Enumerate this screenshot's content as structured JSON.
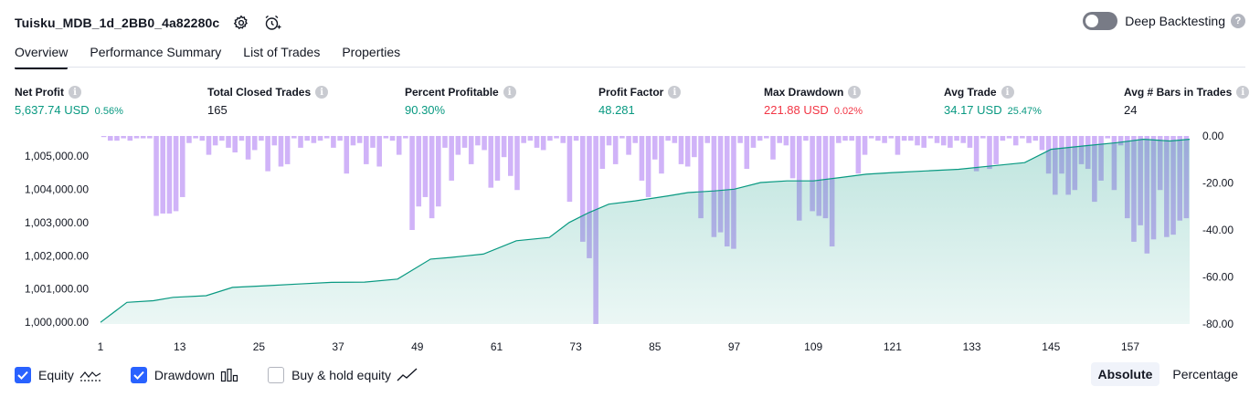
{
  "header": {
    "title": "Tuisku_MDB_1d_2BB0_4a82280c",
    "settings_icon": "gear-icon",
    "alert_icon": "alarm-add-icon",
    "deep_backtesting_label": "Deep Backtesting",
    "deep_backtesting_enabled": false
  },
  "tabs": [
    {
      "label": "Overview",
      "active": true
    },
    {
      "label": "Performance Summary",
      "active": false
    },
    {
      "label": "List of Trades",
      "active": false
    },
    {
      "label": "Properties",
      "active": false
    }
  ],
  "metrics": [
    {
      "label": "Net Profit",
      "value": "5,637.74 USD",
      "sub": "0.56%",
      "color": "#089981"
    },
    {
      "label": "Total Closed Trades",
      "value": "165",
      "sub": "",
      "color": "#131722"
    },
    {
      "label": "Percent Profitable",
      "value": "90.30%",
      "sub": "",
      "color": "#089981"
    },
    {
      "label": "Profit Factor",
      "value": "48.281",
      "sub": "",
      "color": "#089981"
    },
    {
      "label": "Max Drawdown",
      "value": "221.88 USD",
      "sub": "0.02%",
      "color": "#f23645"
    },
    {
      "label": "Avg Trade",
      "value": "34.17 USD",
      "sub": "25.47%",
      "color": "#089981"
    },
    {
      "label": "Avg # Bars in Trades",
      "value": "24",
      "sub": "",
      "color": "#131722"
    }
  ],
  "chart_data": {
    "type": "area",
    "x_ticks": [
      "1",
      "13",
      "25",
      "37",
      "49",
      "61",
      "73",
      "85",
      "97",
      "109",
      "121",
      "133",
      "145",
      "157"
    ],
    "x_range": [
      1,
      166
    ],
    "left_axis": {
      "ticks": [
        "1,000,000.00",
        "1,001,000.00",
        "1,002,000.00",
        "1,003,000.00",
        "1,004,000.00",
        "1,005,000.00"
      ],
      "range": [
        999950,
        1005600
      ]
    },
    "right_axis": {
      "ticks": [
        "0.00",
        "-20.00",
        "-40.00",
        "-60.00",
        "-80.00"
      ],
      "range": [
        -80,
        0
      ]
    },
    "equity": [
      [
        1,
        1000000
      ],
      [
        5,
        1000600
      ],
      [
        9,
        1000650
      ],
      [
        12,
        1000750
      ],
      [
        17,
        1000800
      ],
      [
        21,
        1001050
      ],
      [
        26,
        1001100
      ],
      [
        31,
        1001150
      ],
      [
        36,
        1001200
      ],
      [
        41,
        1001210
      ],
      [
        46,
        1001300
      ],
      [
        51,
        1001900
      ],
      [
        54,
        1001950
      ],
      [
        59,
        1002050
      ],
      [
        64,
        1002450
      ],
      [
        69,
        1002550
      ],
      [
        72,
        1003000
      ],
      [
        75,
        1003300
      ],
      [
        78,
        1003550
      ],
      [
        82,
        1003650
      ],
      [
        87,
        1003800
      ],
      [
        90,
        1003900
      ],
      [
        94,
        1003950
      ],
      [
        97,
        1004000
      ],
      [
        101,
        1004200
      ],
      [
        105,
        1004250
      ],
      [
        109,
        1004250
      ],
      [
        113,
        1004350
      ],
      [
        117,
        1004450
      ],
      [
        121,
        1004500
      ],
      [
        126,
        1004550
      ],
      [
        131,
        1004600
      ],
      [
        136,
        1004700
      ],
      [
        141,
        1004800
      ],
      [
        145,
        1005200
      ],
      [
        150,
        1005300
      ],
      [
        155,
        1005400
      ],
      [
        159,
        1005500
      ],
      [
        163,
        1005450
      ],
      [
        166,
        1005500
      ]
    ],
    "drawdown": [
      0,
      -2,
      -2,
      -1,
      -2,
      -1,
      -1,
      -1,
      -34,
      -33,
      -33,
      -32,
      -26,
      -3,
      -1,
      -2,
      -8,
      -4,
      -2,
      -5,
      -7,
      -2,
      -10,
      -6,
      -2,
      -15,
      -4,
      -13,
      -12,
      -1,
      -5,
      -2,
      -3,
      -2,
      -1,
      -5,
      -2,
      -16,
      -4,
      -3,
      -12,
      -5,
      -13,
      -1,
      -2,
      -8,
      -1,
      -40,
      -30,
      -26,
      -35,
      -30,
      -5,
      -19,
      -8,
      -5,
      -12,
      -4,
      -6,
      -22,
      -19,
      -9,
      -17,
      -23,
      -3,
      -2,
      -5,
      -6,
      -2,
      -1,
      -3,
      -28,
      -2,
      -45,
      -52,
      -80,
      -14,
      -4,
      -12,
      -1,
      -8,
      -3,
      -19,
      -26,
      -10,
      -16,
      -2,
      -3,
      -12,
      -13,
      -9,
      -35,
      -3,
      -43,
      -41,
      -47,
      -48,
      -3,
      -14,
      -5,
      -2,
      -1,
      -10,
      -3,
      -4,
      -18,
      -36,
      -2,
      -32,
      -34,
      -35,
      -47,
      -3,
      -2,
      -2,
      -16,
      -8,
      -1,
      -2,
      -3,
      -1,
      -8,
      -2,
      -2,
      -4,
      -5,
      -1,
      -3,
      -4,
      -5,
      -2,
      -3,
      -5,
      -15,
      -1,
      -14,
      -12,
      -2,
      -1,
      -4,
      -1,
      -3,
      -2,
      -6,
      -16,
      -25,
      -16,
      -25,
      -23,
      -12,
      -14,
      -28,
      -19,
      -1,
      -23,
      -4,
      -35,
      -45,
      -38,
      -50,
      -44,
      -23,
      -43,
      -42,
      -36,
      -35
    ],
    "equity_color": "#089981",
    "drawdown_color": "#c8a6f7"
  },
  "legend": [
    {
      "label": "Equity",
      "checked": true,
      "icon": "equity-line-icon"
    },
    {
      "label": "Drawdown",
      "checked": true,
      "icon": "drawdown-bars-icon"
    },
    {
      "label": "Buy & hold equity",
      "checked": false,
      "icon": "buyhold-line-icon"
    }
  ],
  "mode": {
    "absolute": "Absolute",
    "percentage": "Percentage",
    "selected": "Absolute"
  }
}
